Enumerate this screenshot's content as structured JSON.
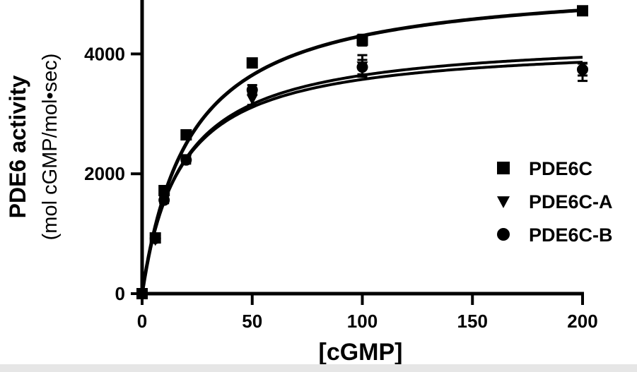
{
  "chart_data": {
    "type": "scatter",
    "xlabel": "[cGMP]",
    "ylabel": "PDE6 activity",
    "ylabel_units": "(mol cGMP/mol•sec)",
    "xlim": [
      0,
      200
    ],
    "ylim": [
      0,
      4900
    ],
    "xticks": [
      0,
      50,
      100,
      150,
      200
    ],
    "yticks": [
      0,
      2000,
      4000
    ],
    "grid": false,
    "legend_position": "right-middle",
    "fit": "Michaelis-Menten",
    "series": [
      {
        "name": "PDE6C",
        "marker": "square",
        "color": "#000000",
        "x": [
          0,
          6,
          10,
          20,
          50,
          100,
          200
        ],
        "y": [
          0,
          930,
          1720,
          2650,
          3850,
          4230,
          4720
        ],
        "err": [
          0,
          40,
          60,
          60,
          60,
          90,
          50
        ],
        "fit_vmax": 5250,
        "fit_km": 22
      },
      {
        "name": "PDE6C-A",
        "marker": "triangle-down",
        "color": "#000000",
        "x": [
          0,
          6,
          10,
          20,
          50,
          100,
          200
        ],
        "y": [
          0,
          900,
          1600,
          2250,
          3250,
          3800,
          3700
        ],
        "err": [
          0,
          40,
          50,
          60,
          100,
          180,
          150
        ],
        "fit_vmax": 4300,
        "fit_km": 18
      },
      {
        "name": "PDE6C-B",
        "marker": "circle",
        "color": "#000000",
        "x": [
          0,
          6,
          10,
          20,
          50,
          100,
          200
        ],
        "y": [
          0,
          920,
          1560,
          2230,
          3400,
          3780,
          3740
        ],
        "err": [
          0,
          40,
          50,
          60,
          80,
          120,
          100
        ],
        "fit_vmax": 4200,
        "fit_km": 17.5
      }
    ]
  }
}
